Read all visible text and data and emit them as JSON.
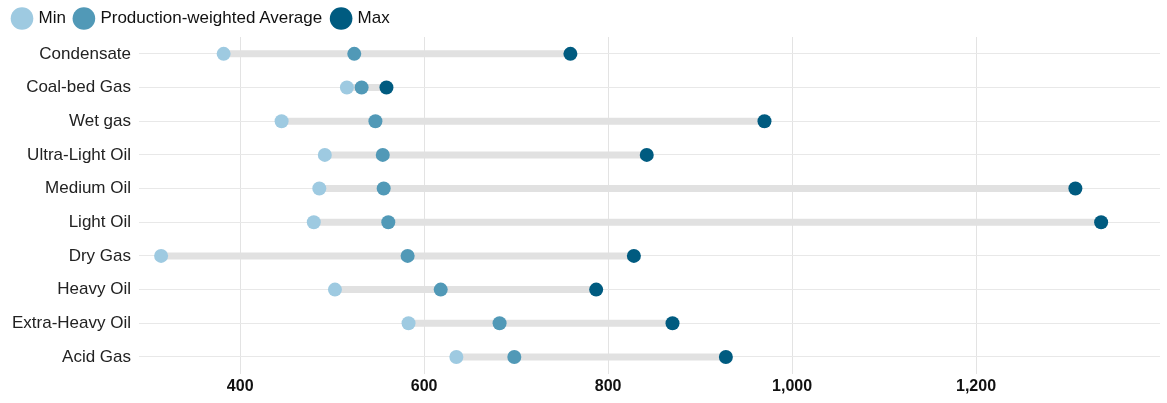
{
  "chart_data": {
    "type": "scatter",
    "orientation": "horizontal",
    "legend": "top left",
    "grid": true,
    "marker": "circle",
    "categories": [
      "Condensate",
      "Coal-bed Gas",
      "Wet gas",
      "Ultra-Light Oil",
      "Medium Oil",
      "Light Oil",
      "Dry Gas",
      "Heavy Oil",
      "Extra-Heavy Oil",
      "Acid Gas"
    ],
    "xlim": [
      290,
      1400
    ],
    "xticks": [
      400,
      600,
      800,
      {
        "value": 1000,
        "label": "1,000"
      },
      {
        "value": 1200,
        "label": "1,200"
      }
    ],
    "series": [
      {
        "name": "Min",
        "color": "#9ecae1",
        "values": [
          382,
          516,
          445,
          492,
          486,
          480,
          314,
          503,
          583,
          635
        ]
      },
      {
        "name": "Production-weighted Average",
        "color": "#5199b7",
        "values": [
          524,
          532,
          547,
          555,
          556,
          561,
          582,
          618,
          682,
          698
        ]
      },
      {
        "name": "Max",
        "color": "#005b80",
        "values": [
          759,
          559,
          970,
          842,
          1308,
          1336,
          828,
          787,
          870,
          928
        ]
      }
    ]
  }
}
